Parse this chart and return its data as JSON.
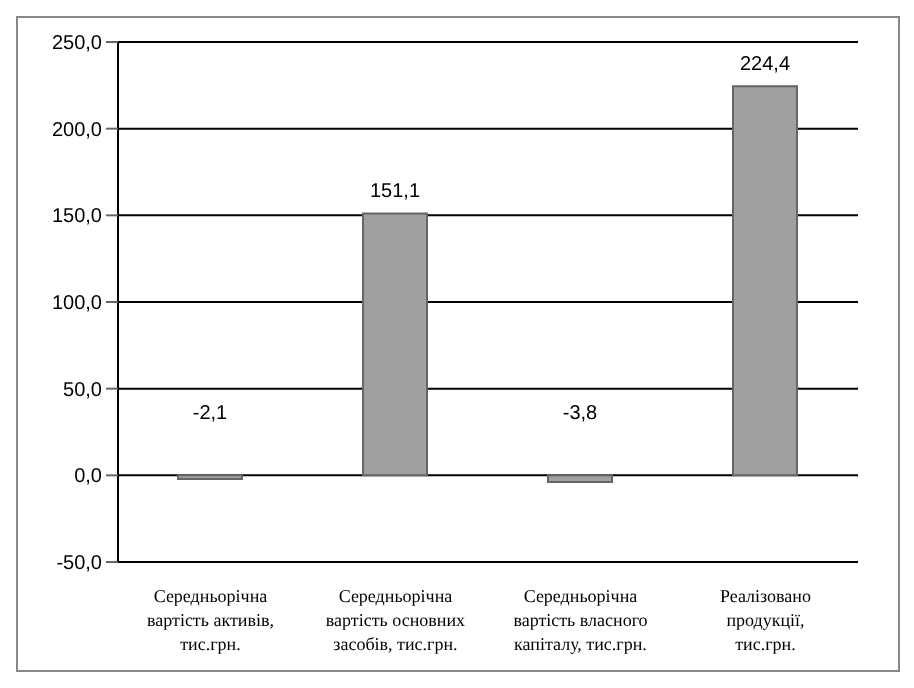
{
  "chart_data": {
    "type": "bar",
    "categories": [
      "Середньорічна вартість активів, тис.грн.",
      "Середньорічна вартість основних засобів, тис.грн.",
      "Середньорічна вартість власного капіталу, тис.грн.",
      "Реалізовано продукції, тис.грн."
    ],
    "values": [
      -2.1,
      151.1,
      -3.8,
      224.4
    ],
    "value_labels": [
      "-2,1",
      "151,1",
      "-3,8",
      "224,4"
    ],
    "color": "#a0a0a0",
    "ylim": [
      -50,
      250
    ],
    "yticks": [
      {
        "value": -50,
        "label": "-50,0"
      },
      {
        "value": 0,
        "label": "0,0"
      },
      {
        "value": 50,
        "label": "50,0"
      },
      {
        "value": 100,
        "label": "100,0"
      },
      {
        "value": 150,
        "label": "150,0"
      },
      {
        "value": 200,
        "label": "200,0"
      },
      {
        "value": 250,
        "label": "250,0"
      }
    ],
    "grid": "y",
    "legend": false
  }
}
